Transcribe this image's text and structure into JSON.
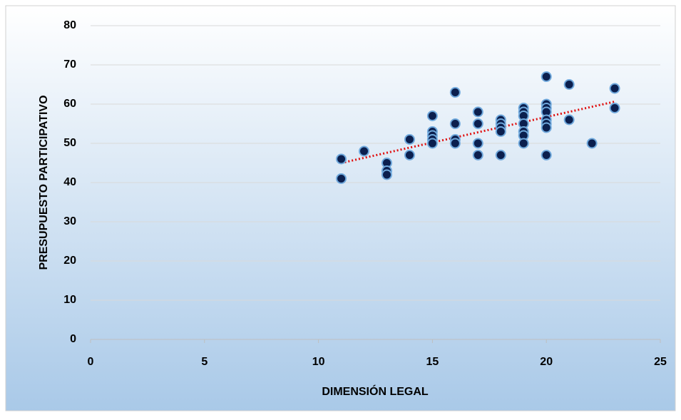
{
  "chart_data": {
    "type": "scatter",
    "xlabel": "DIMENSIÓN LEGAL",
    "ylabel": "PRESUPUESTO PARTICIPATIVO",
    "x": [
      11,
      11,
      12,
      13,
      13,
      13,
      14,
      14,
      15,
      15,
      15,
      15,
      15,
      16,
      16,
      16,
      16,
      17,
      17,
      17,
      17,
      18,
      18,
      18,
      18,
      18,
      19,
      19,
      19,
      19,
      19,
      19,
      19,
      20,
      20,
      20,
      20,
      20,
      20,
      20,
      20,
      21,
      21,
      22,
      23,
      23
    ],
    "values": [
      46,
      41,
      48,
      45,
      43,
      42,
      51,
      47,
      57,
      53,
      52,
      51,
      50,
      63,
      55,
      51,
      50,
      58,
      55,
      50,
      47,
      56,
      55,
      54,
      53,
      47,
      59,
      58,
      57,
      55,
      53,
      52,
      50,
      67,
      60,
      59,
      58,
      56,
      55,
      54,
      47,
      65,
      56,
      50,
      64,
      59
    ],
    "color": "#0b1f4e",
    "edge_color": "#6fa8dc",
    "trendline": true,
    "trendline_color": "#e01010",
    "xlim": [
      0,
      25
    ],
    "xticks": [
      0,
      5,
      10,
      15,
      20,
      25
    ],
    "ylim": [
      0,
      80
    ],
    "yticks": [
      0,
      10,
      20,
      30,
      40,
      50,
      60,
      70,
      80
    ],
    "grid": true
  }
}
